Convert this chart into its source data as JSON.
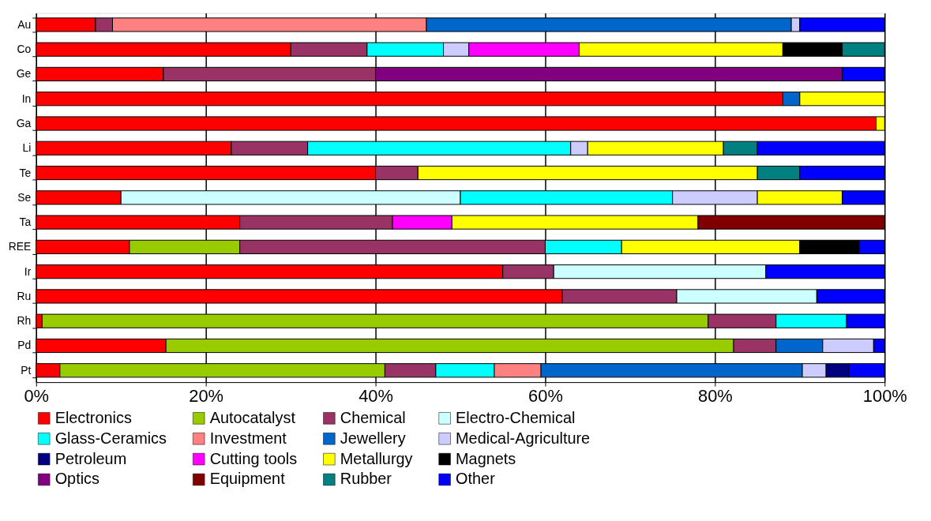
{
  "chart_data": {
    "type": "bar",
    "orientation": "horizontal",
    "stacked": true,
    "categories": [
      "Au",
      "Co",
      "Ge",
      "In",
      "Ga",
      "Li",
      "Te",
      "Se",
      "Ta",
      "REE",
      "Ir",
      "Ru",
      "Rh",
      "Pd",
      "Pt"
    ],
    "xlim": [
      0,
      100
    ],
    "xticks": [
      {
        "value": 0,
        "label": "0%"
      },
      {
        "value": 20,
        "label": "20%"
      },
      {
        "value": 40,
        "label": "40%"
      },
      {
        "value": 60,
        "label": "60%"
      },
      {
        "value": 80,
        "label": "80%"
      },
      {
        "value": 100,
        "label": "100%"
      }
    ],
    "grid": "x",
    "legend": "bottom",
    "series": [
      {
        "name": "Electronics",
        "color": "#ff0000",
        "values": [
          7,
          30,
          15,
          88,
          99,
          23,
          40,
          10,
          24,
          11,
          55,
          62,
          0.7,
          15.3,
          2.8
        ]
      },
      {
        "name": "Autocatalyst",
        "color": "#99cc00",
        "values": [
          null,
          null,
          null,
          null,
          null,
          null,
          null,
          null,
          null,
          13,
          null,
          null,
          78.5,
          66.9,
          38.3
        ]
      },
      {
        "name": "Chemical",
        "color": "#993366",
        "values": [
          2,
          9,
          25,
          null,
          null,
          9,
          5,
          null,
          18,
          36,
          6,
          13.5,
          8,
          5,
          6
        ]
      },
      {
        "name": "Electro-Chemical",
        "color": "#ccffff",
        "values": [
          null,
          null,
          null,
          null,
          null,
          null,
          null,
          40,
          null,
          null,
          25,
          16.5,
          null,
          null,
          null
        ]
      },
      {
        "name": "Glass-Ceramics",
        "color": "#00ffff",
        "values": [
          null,
          9,
          null,
          null,
          null,
          31,
          null,
          25,
          null,
          9,
          null,
          null,
          8.3,
          null,
          6.9
        ]
      },
      {
        "name": "Investment",
        "color": "#ff8080",
        "values": [
          37,
          null,
          null,
          null,
          null,
          null,
          null,
          null,
          null,
          null,
          null,
          null,
          null,
          null,
          5.5
        ]
      },
      {
        "name": "Jewellery",
        "color": "#0066cc",
        "values": [
          43,
          null,
          null,
          2,
          null,
          null,
          null,
          null,
          null,
          null,
          null,
          null,
          null,
          5.5,
          30.8
        ]
      },
      {
        "name": "Medical-Agriculture",
        "color": "#ccccff",
        "values": [
          1,
          3,
          null,
          null,
          null,
          2,
          null,
          10,
          null,
          null,
          null,
          null,
          null,
          6,
          2.8
        ]
      },
      {
        "name": "Petroleum",
        "color": "#000080",
        "values": [
          null,
          null,
          null,
          null,
          null,
          null,
          null,
          null,
          null,
          null,
          null,
          null,
          null,
          null,
          2.7
        ]
      },
      {
        "name": "Cutting tools",
        "color": "#ff00ff",
        "values": [
          null,
          13,
          null,
          null,
          null,
          null,
          null,
          null,
          7,
          null,
          null,
          null,
          null,
          null,
          null
        ]
      },
      {
        "name": "Metallurgy",
        "color": "#ffff00",
        "values": [
          null,
          24,
          null,
          10,
          1,
          16,
          40,
          10,
          29,
          21,
          null,
          null,
          null,
          null,
          null
        ]
      },
      {
        "name": "Magnets",
        "color": "#000000",
        "values": [
          null,
          7,
          null,
          null,
          null,
          null,
          null,
          null,
          null,
          7,
          null,
          null,
          null,
          null,
          null
        ]
      },
      {
        "name": "Optics",
        "color": "#800080",
        "values": [
          null,
          null,
          55,
          null,
          null,
          null,
          null,
          null,
          null,
          null,
          null,
          null,
          null,
          null,
          null
        ]
      },
      {
        "name": "Equipment",
        "color": "#800000",
        "values": [
          null,
          null,
          null,
          null,
          null,
          null,
          null,
          null,
          22,
          null,
          null,
          null,
          null,
          null,
          null
        ]
      },
      {
        "name": "Rubber",
        "color": "#008080",
        "values": [
          null,
          5,
          null,
          null,
          null,
          4,
          5,
          null,
          null,
          null,
          null,
          null,
          null,
          null,
          null
        ]
      },
      {
        "name": "Other",
        "color": "#0000ff",
        "values": [
          10,
          null,
          5,
          null,
          null,
          15,
          10,
          5,
          null,
          3,
          14,
          8,
          4.5,
          1.3,
          4.2
        ]
      }
    ]
  }
}
